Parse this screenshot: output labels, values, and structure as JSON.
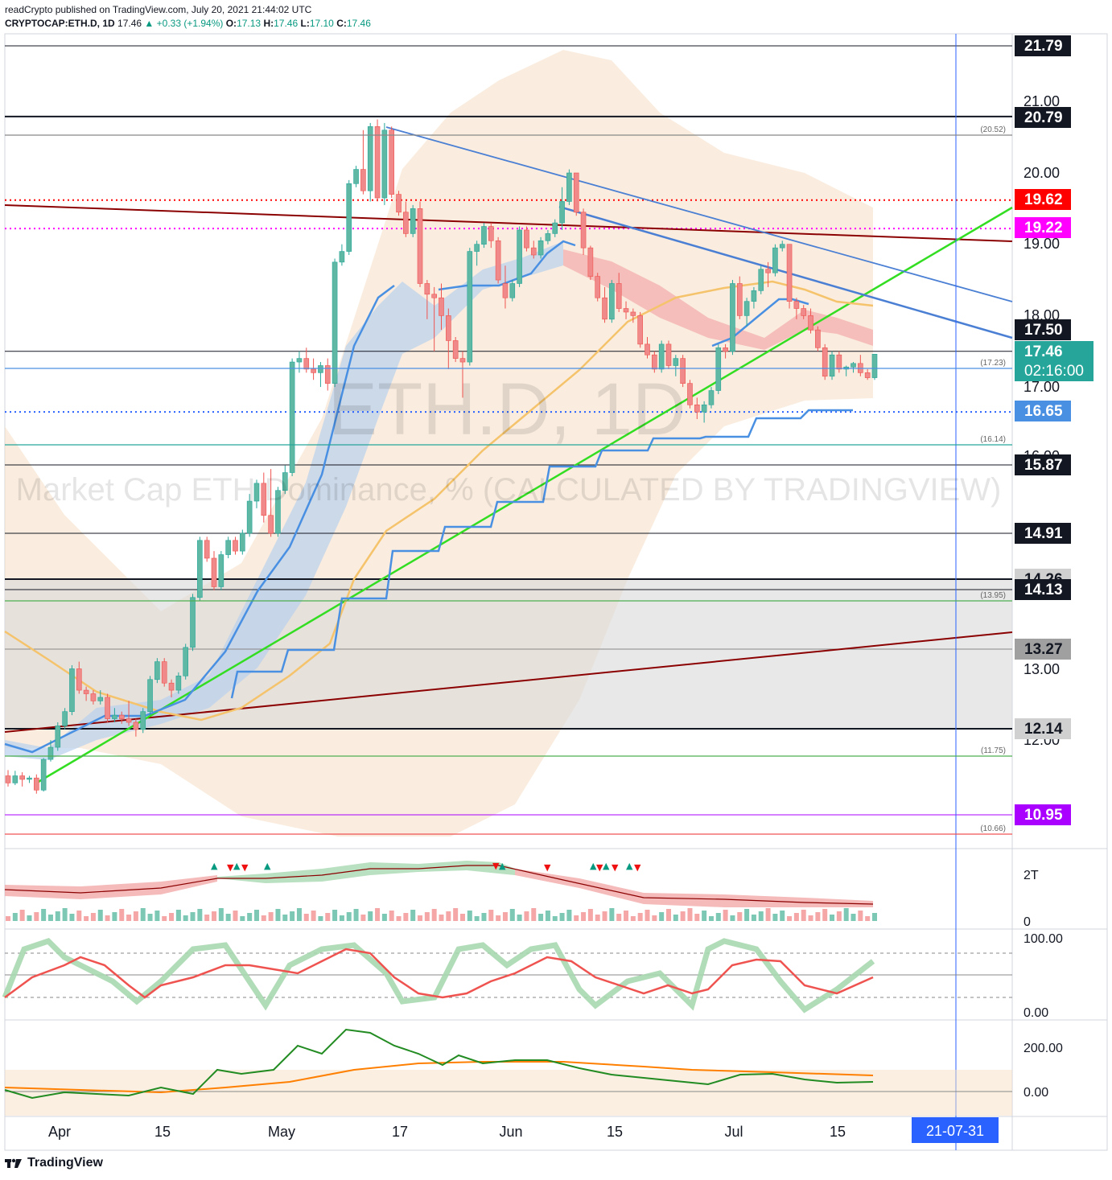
{
  "header": {
    "line1": "readCrypto published on TradingView.com, July 20, 2021 21:44:02 UTC",
    "symbol": "CRYPTOCAP:ETH.D, 1D",
    "last": "17.46",
    "arrow": "▲",
    "change": "+0.33 (+1.94%)",
    "o_label": "O:",
    "o_value": "17.13",
    "h_label": "H:",
    "h_value": "17.46",
    "l_label": "L:",
    "l_value": "17.10",
    "c_label": "C:",
    "c_value": "17.46"
  },
  "watermark": {
    "symbol": "ETH.D, 1D",
    "description": "Market Cap ETH Dominance, % (CALCULATED BY TRADINGVIEW)"
  },
  "footer": {
    "brand": "TradingView"
  },
  "colors": {
    "up": "#5fb8a3",
    "down": "#f08a8a",
    "up_border": "#26a69a",
    "down_border": "#ef5350",
    "accent_blue": "#2962ff",
    "green_line": "#33dd22",
    "dark_red": "#8b0000"
  },
  "chart_data": {
    "type": "candlestick",
    "symbol": "CRYPTOCAP:ETH.D",
    "interval": "1D",
    "y_axis_ticks": [
      "21.00",
      "20.00",
      "19.00",
      "18.00",
      "17.00",
      "16.00",
      "13.00",
      "12.00"
    ],
    "x_axis_ticks": [
      "Apr",
      "15",
      "May",
      "17",
      "Jun",
      "15",
      "Jul",
      "15"
    ],
    "x_cursor_label": "21-07-31",
    "price_labels": [
      {
        "text": "21.79",
        "value": 21.79,
        "bg": "#131722",
        "fg": "#ffffff"
      },
      {
        "text": "20.79",
        "value": 20.79,
        "bg": "#131722",
        "fg": "#ffffff"
      },
      {
        "text": "19.62",
        "value": 19.62,
        "bg": "#ff0000",
        "fg": "#ffffff"
      },
      {
        "text": "19.22",
        "value": 19.22,
        "bg": "#ff00ff",
        "fg": "#ffffff"
      },
      {
        "text": "17.50",
        "value": 17.5,
        "bg": "#131722",
        "fg": "#ffffff"
      },
      {
        "text": "17.46",
        "value": 17.46,
        "bg": "#26a69a",
        "fg": "#ffffff",
        "sub": "02:16:00"
      },
      {
        "text": "16.65",
        "value": 16.65,
        "bg": "#4a90e2",
        "fg": "#ffffff"
      },
      {
        "text": "15.87",
        "value": 15.87,
        "bg": "#131722",
        "fg": "#ffffff"
      },
      {
        "text": "14.91",
        "value": 14.91,
        "bg": "#131722",
        "fg": "#ffffff"
      },
      {
        "text": "14.26",
        "value": 14.26,
        "bg": "#d0d0d0",
        "fg": "#131722"
      },
      {
        "text": "14.13",
        "value": 14.13,
        "bg": "#131722",
        "fg": "#ffffff"
      },
      {
        "text": "13.27",
        "value": 13.27,
        "bg": "#a0a0a0",
        "fg": "#131722"
      },
      {
        "text": "12.14",
        "value": 12.14,
        "bg": "#d0d0d0",
        "fg": "#131722"
      },
      {
        "text": "10.95",
        "value": 10.95,
        "bg": "#aa00ff",
        "fg": "#ffffff"
      }
    ],
    "line_tags": [
      {
        "text": "(20.52)",
        "value": 20.52
      },
      {
        "text": "(17.23)",
        "value": 17.23
      },
      {
        "text": "(16.14)",
        "value": 16.14
      },
      {
        "text": "(13.95)",
        "value": 13.95
      },
      {
        "text": "(11.75)",
        "value": 11.75
      },
      {
        "text": "(10.66)",
        "value": 10.66
      }
    ],
    "candles": [
      [
        11.55,
        11.63,
        11.4,
        11.45
      ],
      [
        11.45,
        11.62,
        11.42,
        11.55
      ],
      [
        11.55,
        11.6,
        11.4,
        11.5
      ],
      [
        11.5,
        11.55,
        11.45,
        11.52
      ],
      [
        11.52,
        11.57,
        11.3,
        11.35
      ],
      [
        11.35,
        11.8,
        11.33,
        11.78
      ],
      [
        11.78,
        12.05,
        11.75,
        11.95
      ],
      [
        11.95,
        12.3,
        11.9,
        12.25
      ],
      [
        12.25,
        12.5,
        12.2,
        12.45
      ],
      [
        12.45,
        13.1,
        12.4,
        13.05
      ],
      [
        13.05,
        13.15,
        12.7,
        12.75
      ],
      [
        12.75,
        12.8,
        12.6,
        12.7
      ],
      [
        12.7,
        12.75,
        12.55,
        12.6
      ],
      [
        12.6,
        12.75,
        12.55,
        12.65
      ],
      [
        12.65,
        12.7,
        12.3,
        12.35
      ],
      [
        12.35,
        12.5,
        12.3,
        12.4
      ],
      [
        12.4,
        12.45,
        12.28,
        12.35
      ],
      [
        12.35,
        12.6,
        12.25,
        12.3
      ],
      [
        12.3,
        12.35,
        12.1,
        12.2
      ],
      [
        12.2,
        12.5,
        12.15,
        12.45
      ],
      [
        12.45,
        12.95,
        12.4,
        12.9
      ],
      [
        12.9,
        13.2,
        12.85,
        13.15
      ],
      [
        13.15,
        13.2,
        12.8,
        12.85
      ],
      [
        12.85,
        12.9,
        12.65,
        12.75
      ],
      [
        12.75,
        13.0,
        12.7,
        12.95
      ],
      [
        12.95,
        13.4,
        12.9,
        13.35
      ],
      [
        13.35,
        14.1,
        13.3,
        14.05
      ],
      [
        14.05,
        14.9,
        14.0,
        14.85
      ],
      [
        14.85,
        14.9,
        14.55,
        14.6
      ],
      [
        14.6,
        14.7,
        14.15,
        14.2
      ],
      [
        14.2,
        14.7,
        14.15,
        14.65
      ],
      [
        14.65,
        14.9,
        14.6,
        14.85
      ],
      [
        14.85,
        14.9,
        14.65,
        14.7
      ],
      [
        14.7,
        15.0,
        14.65,
        14.95
      ],
      [
        14.95,
        15.5,
        14.9,
        15.4
      ],
      [
        15.4,
        15.7,
        15.3,
        15.65
      ],
      [
        15.65,
        15.8,
        15.1,
        15.2
      ],
      [
        15.2,
        15.85,
        14.9,
        14.95
      ],
      [
        14.95,
        15.6,
        14.9,
        15.55
      ],
      [
        15.55,
        15.9,
        15.5,
        15.8
      ],
      [
        15.8,
        17.4,
        15.75,
        17.35
      ],
      [
        17.35,
        17.5,
        17.2,
        17.4
      ],
      [
        17.4,
        17.55,
        17.2,
        17.25
      ],
      [
        17.25,
        17.4,
        17.1,
        17.2
      ],
      [
        17.2,
        17.35,
        17.0,
        17.3
      ],
      [
        17.3,
        17.4,
        16.95,
        17.05
      ],
      [
        17.05,
        18.8,
        17.0,
        18.75
      ],
      [
        18.75,
        19.0,
        18.7,
        18.9
      ],
      [
        18.9,
        19.9,
        18.85,
        19.85
      ],
      [
        19.85,
        20.1,
        19.8,
        20.05
      ],
      [
        20.05,
        20.6,
        19.7,
        19.75
      ],
      [
        19.75,
        20.7,
        19.6,
        20.65
      ],
      [
        20.65,
        20.75,
        19.6,
        19.65
      ],
      [
        19.65,
        20.7,
        19.55,
        20.6
      ],
      [
        20.6,
        20.65,
        19.65,
        19.7
      ],
      [
        19.7,
        19.75,
        19.4,
        19.45
      ],
      [
        19.45,
        19.6,
        19.1,
        19.15
      ],
      [
        19.15,
        19.55,
        19.1,
        19.5
      ],
      [
        19.5,
        19.6,
        18.4,
        18.45
      ],
      [
        18.45,
        18.5,
        17.95,
        18.3
      ],
      [
        18.3,
        18.4,
        17.5,
        18.25
      ],
      [
        18.25,
        18.45,
        17.8,
        18.0
      ],
      [
        18.0,
        18.1,
        17.25,
        17.65
      ],
      [
        17.65,
        17.7,
        17.35,
        17.4
      ],
      [
        17.4,
        17.5,
        16.85,
        17.35
      ],
      [
        17.35,
        18.95,
        17.3,
        18.9
      ],
      [
        18.9,
        19.05,
        18.7,
        19.0
      ],
      [
        19.0,
        19.3,
        18.95,
        19.25
      ],
      [
        19.25,
        19.3,
        18.95,
        19.05
      ],
      [
        19.05,
        19.1,
        18.45,
        18.5
      ],
      [
        18.45,
        18.7,
        18.1,
        18.25
      ],
      [
        18.25,
        18.5,
        18.2,
        18.45
      ],
      [
        18.45,
        19.25,
        18.4,
        19.2
      ],
      [
        19.2,
        19.25,
        18.9,
        18.95
      ],
      [
        18.95,
        19.05,
        18.8,
        18.85
      ],
      [
        18.85,
        19.1,
        18.8,
        19.05
      ],
      [
        19.05,
        19.2,
        19.0,
        19.15
      ],
      [
        19.15,
        19.35,
        19.1,
        19.3
      ],
      [
        19.3,
        19.8,
        19.2,
        19.6
      ],
      [
        19.6,
        20.05,
        19.55,
        20.0
      ],
      [
        20.0,
        20.0,
        19.4,
        19.45
      ],
      [
        19.45,
        19.5,
        18.85,
        18.95
      ],
      [
        18.95,
        18.98,
        18.5,
        18.55
      ],
      [
        18.55,
        18.6,
        18.2,
        18.25
      ],
      [
        18.25,
        18.4,
        17.9,
        17.95
      ],
      [
        17.95,
        18.5,
        17.9,
        18.45
      ],
      [
        18.45,
        18.6,
        18.05,
        18.1
      ],
      [
        18.1,
        18.2,
        17.95,
        18.05
      ],
      [
        18.05,
        18.1,
        17.9,
        18.0
      ],
      [
        18.0,
        18.05,
        17.55,
        17.6
      ],
      [
        17.6,
        17.7,
        17.4,
        17.45
      ],
      [
        17.45,
        17.5,
        17.2,
        17.25
      ],
      [
        17.25,
        17.65,
        17.2,
        17.6
      ],
      [
        17.6,
        17.65,
        17.25,
        17.3
      ],
      [
        17.3,
        17.45,
        17.15,
        17.4
      ],
      [
        17.4,
        17.45,
        17.0,
        17.05
      ],
      [
        17.05,
        17.1,
        16.7,
        16.75
      ],
      [
        16.75,
        16.85,
        16.55,
        16.65
      ],
      [
        16.65,
        16.8,
        16.5,
        16.75
      ],
      [
        16.75,
        17.0,
        16.7,
        16.95
      ],
      [
        16.95,
        17.6,
        16.9,
        17.55
      ],
      [
        17.55,
        17.6,
        17.4,
        17.5
      ],
      [
        17.5,
        18.5,
        17.45,
        18.45
      ],
      [
        18.45,
        18.55,
        17.95,
        18.0
      ],
      [
        18.0,
        18.25,
        17.85,
        18.2
      ],
      [
        18.2,
        18.4,
        18.1,
        18.35
      ],
      [
        18.35,
        18.7,
        18.3,
        18.65
      ],
      [
        18.65,
        18.75,
        18.4,
        18.6
      ],
      [
        18.6,
        19.0,
        18.55,
        18.95
      ],
      [
        18.95,
        19.05,
        18.9,
        19.0
      ],
      [
        19.0,
        19.0,
        18.1,
        18.2
      ],
      [
        18.2,
        18.25,
        17.95,
        18.1
      ],
      [
        18.1,
        18.15,
        17.95,
        18.0
      ],
      [
        18.0,
        18.1,
        17.75,
        17.8
      ],
      [
        17.8,
        17.85,
        17.5,
        17.55
      ],
      [
        17.55,
        17.6,
        17.1,
        17.15
      ],
      [
        17.15,
        17.5,
        17.1,
        17.45
      ],
      [
        17.45,
        17.5,
        17.2,
        17.25
      ],
      [
        17.25,
        17.3,
        17.15,
        17.28
      ],
      [
        17.28,
        17.35,
        17.2,
        17.33
      ],
      [
        17.33,
        17.45,
        17.15,
        17.2
      ],
      [
        17.2,
        17.25,
        17.1,
        17.13
      ],
      [
        17.13,
        17.46,
        17.1,
        17.46
      ]
    ]
  }
}
